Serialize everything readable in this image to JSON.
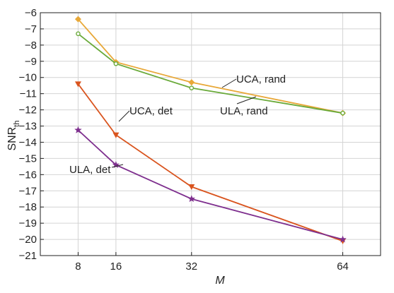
{
  "chart_data": {
    "type": "line",
    "xlabel": "M",
    "ylabel_main": "SNR",
    "ylabel_sub": "th",
    "x": [
      8,
      16,
      32,
      64
    ],
    "xticks": [
      "8",
      "16",
      "32",
      "64"
    ],
    "xlim": [
      0,
      72
    ],
    "ylim": [
      -21,
      -6
    ],
    "yticks": [
      "-6",
      "-7",
      "-8",
      "-9",
      "-10",
      "-11",
      "-12",
      "-13",
      "-14",
      "-15",
      "-16",
      "-17",
      "-18",
      "-19",
      "-20",
      "-21"
    ],
    "grid": true,
    "series": [
      {
        "name": "UCA, rand",
        "color": "#e8a838",
        "marker": "diamond",
        "values": [
          -6.4,
          -9.05,
          -10.3,
          -12.2
        ]
      },
      {
        "name": "ULA, rand",
        "color": "#6aaa3a",
        "marker": "circle",
        "values": [
          -7.3,
          -9.15,
          -10.65,
          -12.2
        ]
      },
      {
        "name": "UCA, det",
        "color": "#d9541e",
        "marker": "triangle-down",
        "values": [
          -10.4,
          -13.55,
          -16.75,
          -20.1
        ]
      },
      {
        "name": "ULA, det",
        "color": "#7e2f8e",
        "marker": "star",
        "values": [
          -13.25,
          -15.4,
          -17.5,
          -20.0
        ]
      }
    ]
  }
}
